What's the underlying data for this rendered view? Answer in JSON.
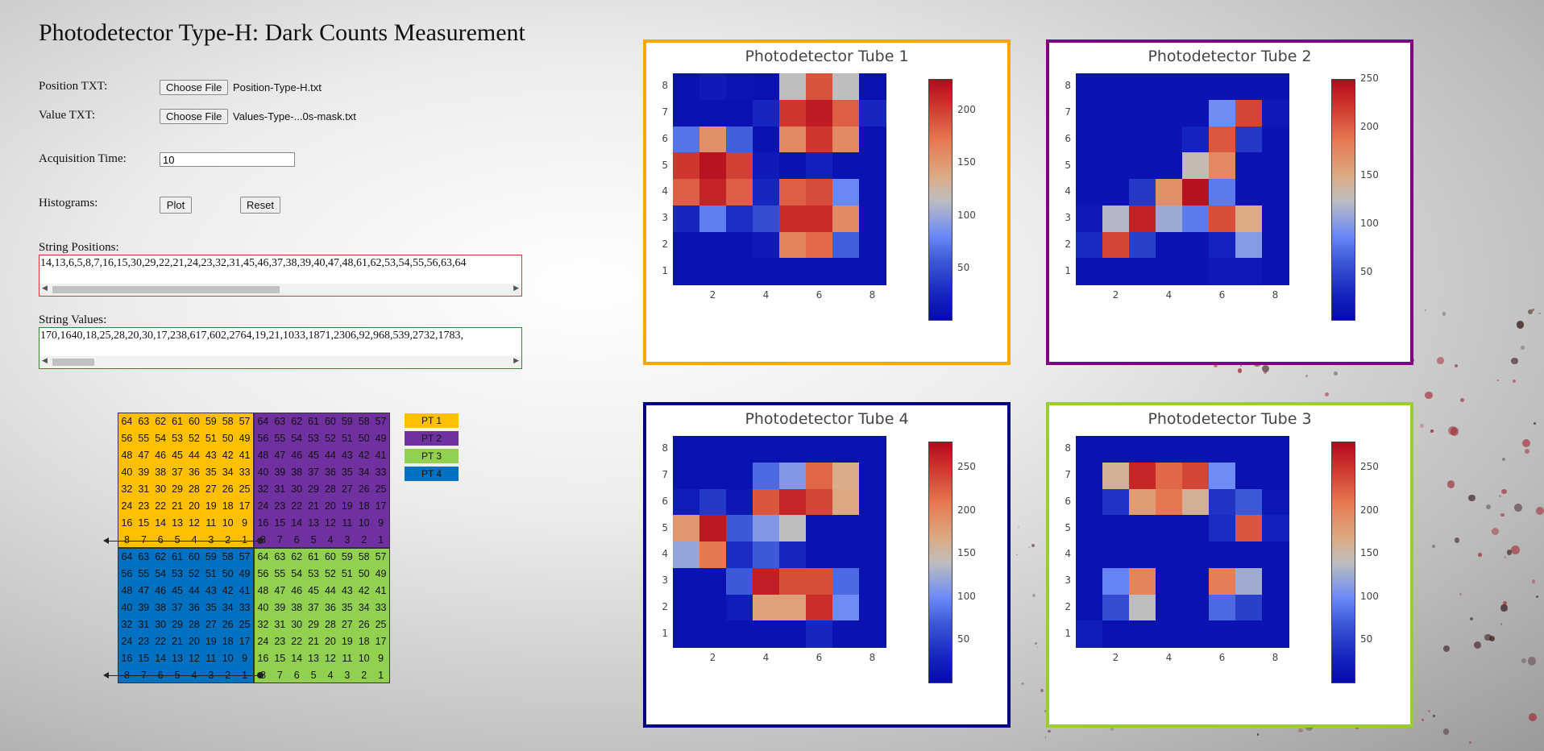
{
  "app": {
    "title": "Photodetector Type-H: Dark Counts Measurement"
  },
  "form": {
    "position_label": "Position TXT:",
    "position_button": "Choose File",
    "position_file": "Position-Type-H.txt",
    "value_label": "Value TXT:",
    "value_button": "Choose File",
    "value_file": "Values-Type-...0s-mask.txt",
    "acq_label": "Acquisition Time:",
    "acq_value": "10",
    "hist_label": "Histograms:",
    "plot_button": "Plot",
    "reset_button": "Reset",
    "string_positions_label": "String Positions:",
    "string_positions_value": "14,13,6,5,8,7,16,15,30,29,22,21,24,23,32,31,45,46,37,38,39,40,47,48,61,62,53,54,55,56,63,64",
    "string_values_label": "String Values:",
    "string_values_value": "170,1640,18,25,28,20,30,17,238,617,602,2764,19,21,1033,1871,2306,92,968,539,2732,1783,"
  },
  "pixel_map": {
    "rows": [
      [
        "64",
        "63",
        "62",
        "61",
        "60",
        "59",
        "58",
        "57"
      ],
      [
        "56",
        "55",
        "54",
        "53",
        "52",
        "51",
        "50",
        "49"
      ],
      [
        "48",
        "47",
        "46",
        "45",
        "44",
        "43",
        "42",
        "41"
      ],
      [
        "40",
        "39",
        "38",
        "37",
        "36",
        "35",
        "34",
        "33"
      ],
      [
        "32",
        "31",
        "30",
        "29",
        "28",
        "27",
        "26",
        "25"
      ],
      [
        "24",
        "23",
        "22",
        "21",
        "20",
        "19",
        "18",
        "17"
      ],
      [
        "16",
        "15",
        "14",
        "13",
        "12",
        "11",
        "10",
        "9"
      ],
      [
        "8",
        "7",
        "6",
        "5",
        "4",
        "3",
        "2",
        "1"
      ]
    ],
    "legend": [
      {
        "label": "PT 1",
        "color": "#ffc000"
      },
      {
        "label": "PT 2",
        "color": "#7030a0"
      },
      {
        "label": "PT 3",
        "color": "#92d050"
      },
      {
        "label": "PT 4",
        "color": "#0070c0"
      }
    ]
  },
  "chart_data": [
    {
      "type": "heatmap",
      "title": "Photodetector Tube 1",
      "border_color": "#ffa500",
      "x": [
        1,
        2,
        3,
        4,
        5,
        6,
        7,
        8
      ],
      "y": [
        1,
        2,
        3,
        4,
        5,
        6,
        7,
        8
      ],
      "x_ticks": [
        "2",
        "4",
        "6",
        "8"
      ],
      "y_ticks": [
        "1",
        "2",
        "3",
        "4",
        "5",
        "6",
        "7",
        "8"
      ],
      "colorbar_ticks": [
        "50",
        "100",
        "150",
        "200"
      ],
      "zmin": 0,
      "zmax": 230,
      "z_rows_top_to_bottom": [
        [
          8,
          15,
          10,
          8,
          115,
          190,
          115,
          8
        ],
        [
          8,
          8,
          8,
          25,
          205,
          220,
          185,
          25
        ],
        [
          70,
          155,
          60,
          8,
          160,
          205,
          160,
          8
        ],
        [
          205,
          225,
          200,
          15,
          8,
          20,
          8,
          8
        ],
        [
          185,
          215,
          185,
          25,
          185,
          195,
          80,
          8
        ],
        [
          25,
          75,
          30,
          50,
          210,
          210,
          160,
          8
        ],
        [
          8,
          8,
          8,
          15,
          165,
          180,
          60,
          8
        ],
        [
          8,
          8,
          8,
          8,
          8,
          8,
          8,
          8
        ]
      ]
    },
    {
      "type": "heatmap",
      "title": "Photodetector Tube 2",
      "border_color": "#800080",
      "x": [
        1,
        2,
        3,
        4,
        5,
        6,
        7,
        8
      ],
      "y": [
        1,
        2,
        3,
        4,
        5,
        6,
        7,
        8
      ],
      "x_ticks": [
        "2",
        "4",
        "6",
        "8"
      ],
      "y_ticks": [
        "1",
        "2",
        "3",
        "4",
        "5",
        "6",
        "7",
        "8"
      ],
      "colorbar_ticks": [
        "50",
        "100",
        "150",
        "200",
        "250"
      ],
      "zmin": 0,
      "zmax": 250,
      "z_rows_top_to_bottom": [
        [
          10,
          10,
          10,
          10,
          10,
          10,
          10,
          10
        ],
        [
          10,
          10,
          10,
          10,
          10,
          90,
          215,
          15
        ],
        [
          10,
          10,
          10,
          10,
          25,
          205,
          40,
          10
        ],
        [
          10,
          10,
          10,
          10,
          130,
          175,
          10,
          10
        ],
        [
          10,
          10,
          40,
          170,
          245,
          80,
          10,
          10
        ],
        [
          15,
          120,
          235,
          110,
          80,
          210,
          150,
          10
        ],
        [
          30,
          215,
          45,
          10,
          10,
          25,
          100,
          10
        ],
        [
          10,
          10,
          10,
          10,
          10,
          15,
          15,
          10
        ]
      ]
    },
    {
      "type": "heatmap",
      "title": "Photodetector Tube 4",
      "border_color": "#000080",
      "x": [
        1,
        2,
        3,
        4,
        5,
        6,
        7,
        8
      ],
      "y": [
        1,
        2,
        3,
        4,
        5,
        6,
        7,
        8
      ],
      "x_ticks": [
        "2",
        "4",
        "6",
        "8"
      ],
      "y_ticks": [
        "1",
        "2",
        "3",
        "4",
        "5",
        "6",
        "7",
        "8"
      ],
      "colorbar_ticks": [
        "50",
        "100",
        "150",
        "200",
        "250"
      ],
      "zmin": 0,
      "zmax": 280,
      "z_rows_top_to_bottom": [
        [
          10,
          10,
          10,
          10,
          10,
          10,
          10,
          10
        ],
        [
          10,
          10,
          10,
          80,
          110,
          220,
          165,
          10
        ],
        [
          20,
          45,
          15,
          230,
          260,
          240,
          170,
          10
        ],
        [
          185,
          270,
          70,
          110,
          140,
          10,
          10,
          10
        ],
        [
          120,
          210,
          35,
          70,
          30,
          10,
          10,
          10
        ],
        [
          10,
          10,
          70,
          265,
          235,
          235,
          80,
          10
        ],
        [
          10,
          10,
          20,
          175,
          175,
          255,
          100,
          10
        ],
        [
          10,
          10,
          10,
          10,
          10,
          30,
          10,
          10
        ]
      ]
    },
    {
      "type": "heatmap",
      "title": "Photodetector Tube 3",
      "border_color": "#9acd32",
      "x": [
        1,
        2,
        3,
        4,
        5,
        6,
        7,
        8
      ],
      "y": [
        1,
        2,
        3,
        4,
        5,
        6,
        7,
        8
      ],
      "x_ticks": [
        "2",
        "4",
        "6",
        "8"
      ],
      "y_ticks": [
        "1",
        "2",
        "3",
        "4",
        "5",
        "6",
        "7",
        "8"
      ],
      "colorbar_ticks": [
        "50",
        "100",
        "150",
        "200",
        "250"
      ],
      "zmin": 0,
      "zmax": 280,
      "z_rows_top_to_bottom": [
        [
          10,
          10,
          10,
          10,
          10,
          10,
          10,
          10
        ],
        [
          10,
          160,
          260,
          220,
          240,
          100,
          10,
          10
        ],
        [
          10,
          40,
          180,
          210,
          160,
          40,
          70,
          15
        ],
        [
          10,
          10,
          10,
          10,
          10,
          35,
          230,
          25
        ],
        [
          10,
          10,
          10,
          10,
          10,
          10,
          10,
          10
        ],
        [
          10,
          95,
          200,
          10,
          10,
          205,
          125,
          10
        ],
        [
          10,
          60,
          140,
          10,
          10,
          80,
          50,
          10
        ],
        [
          20,
          10,
          10,
          10,
          10,
          10,
          10,
          10
        ]
      ]
    }
  ]
}
